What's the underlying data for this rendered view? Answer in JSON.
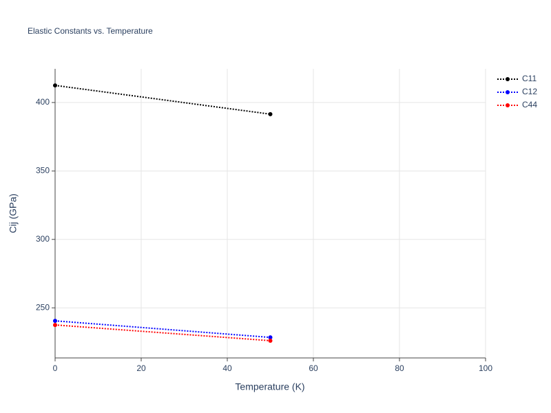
{
  "chart_data": {
    "type": "line",
    "title": "Elastic Constants vs. Temperature",
    "x_label": "Temperature (K)",
    "y_label": "Cij (GPa)",
    "x": [
      0,
      50
    ],
    "series": [
      {
        "name": "C11",
        "color": "#000000",
        "values": [
          412.5,
          391.5
        ]
      },
      {
        "name": "C12",
        "color": "#0000ff",
        "values": [
          240.5,
          228.4
        ]
      },
      {
        "name": "C44",
        "color": "#ff0000",
        "values": [
          237.5,
          226.0
        ]
      }
    ],
    "xlim": [
      0,
      100
    ],
    "xticks": [
      0,
      20,
      40,
      60,
      80,
      100
    ],
    "ylim": [
      213.4,
      424.6
    ],
    "yticks": [
      250,
      300,
      350,
      400
    ],
    "grid": true,
    "legend": "top-right"
  }
}
